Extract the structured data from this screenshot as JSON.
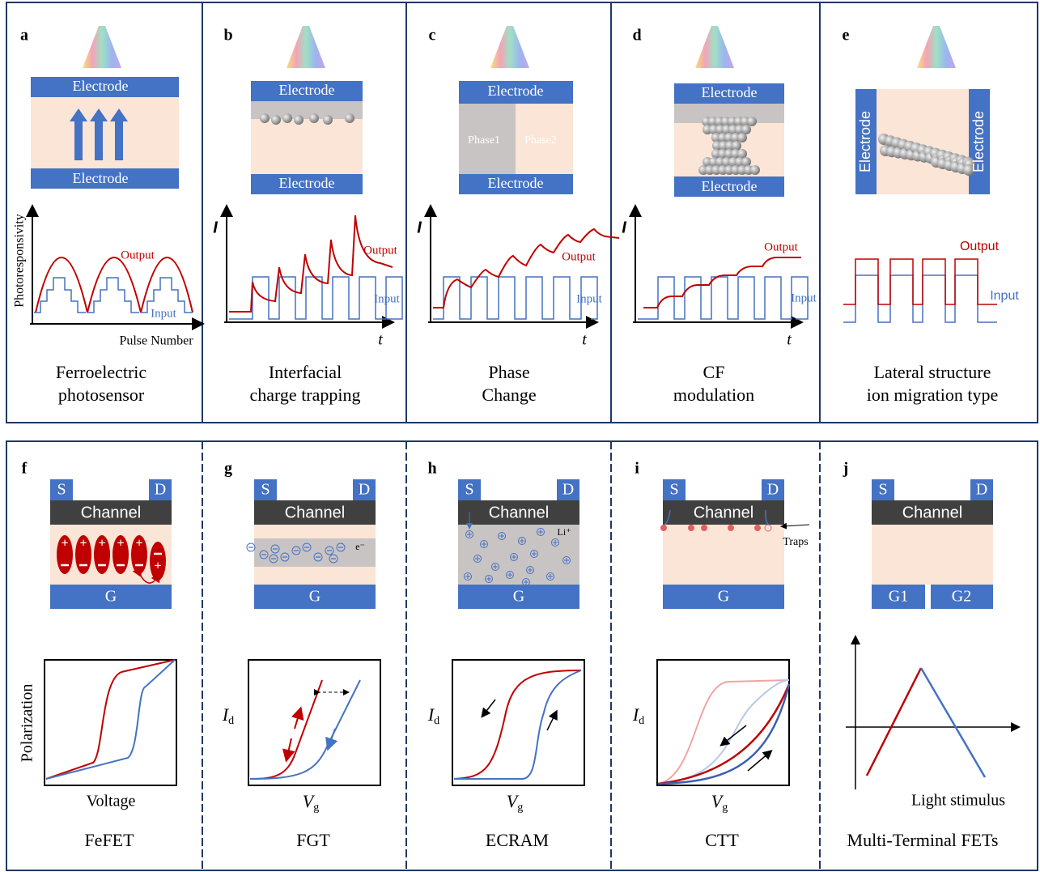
{
  "top_row": {
    "panels": [
      {
        "label": "a",
        "electrodes": [
          "Electrode",
          "Electrode"
        ],
        "y_axis": "Photoresponsivity",
        "x_axis": "Pulse Number",
        "output": "Output",
        "input": "Input",
        "caption": [
          "Ferroelectric",
          "photosensor"
        ]
      },
      {
        "label": "b",
        "electrodes": [
          "Electrode",
          "Electrode"
        ],
        "y_axis": "I",
        "x_axis": "t",
        "output": "Output",
        "input": "Input",
        "caption": [
          "Interfacial",
          "charge trapping"
        ]
      },
      {
        "label": "c",
        "electrodes": [
          "Electrode",
          "Electrode"
        ],
        "phases": [
          "Phase1",
          "Phase2"
        ],
        "y_axis": "I",
        "x_axis": "t",
        "output": "Output",
        "input": "Input",
        "caption": [
          "Phase",
          "Change"
        ]
      },
      {
        "label": "d",
        "electrodes": [
          "Electrode",
          "Electrode"
        ],
        "y_axis": "I",
        "x_axis": "t",
        "output": "Output",
        "input": "Input",
        "caption": [
          "CF",
          "modulation"
        ]
      },
      {
        "label": "e",
        "electrodes": [
          "Electrode",
          "Electrode"
        ],
        "output": "Output",
        "input": "Input",
        "caption": [
          "Lateral structure",
          "ion migration type"
        ]
      }
    ]
  },
  "bottom_row": {
    "panels": [
      {
        "label": "f",
        "source": "S",
        "drain": "D",
        "channel": "Channel",
        "gate": "G",
        "y_axis": "Polarization",
        "x_axis": "Voltage",
        "caption": "FeFET"
      },
      {
        "label": "g",
        "source": "S",
        "drain": "D",
        "channel": "Channel",
        "gate": "G",
        "carrier": "e⁻",
        "y_axis": {
          "symbol": "I",
          "subscript": "d"
        },
        "x_axis": {
          "symbol": "V",
          "subscript": "g"
        },
        "caption": "FGT"
      },
      {
        "label": "h",
        "source": "S",
        "drain": "D",
        "channel": "Channel",
        "gate": "G",
        "carrier": "Li⁺",
        "y_axis": {
          "symbol": "I",
          "subscript": "d"
        },
        "x_axis": {
          "symbol": "V",
          "subscript": "g"
        },
        "caption": "ECRAM"
      },
      {
        "label": "i",
        "source": "S",
        "drain": "D",
        "channel": "Channel",
        "gate": "G",
        "traps": "Traps",
        "y_axis": {
          "symbol": "I",
          "subscript": "d"
        },
        "x_axis": {
          "symbol": "V",
          "subscript": "g"
        },
        "caption": "CTT"
      },
      {
        "label": "j",
        "source": "S",
        "drain": "D",
        "channel": "Channel",
        "gates": [
          "G1",
          "G2"
        ],
        "x_axis": "Light stimulus",
        "caption": "Multi-Terminal FETs"
      }
    ]
  }
}
